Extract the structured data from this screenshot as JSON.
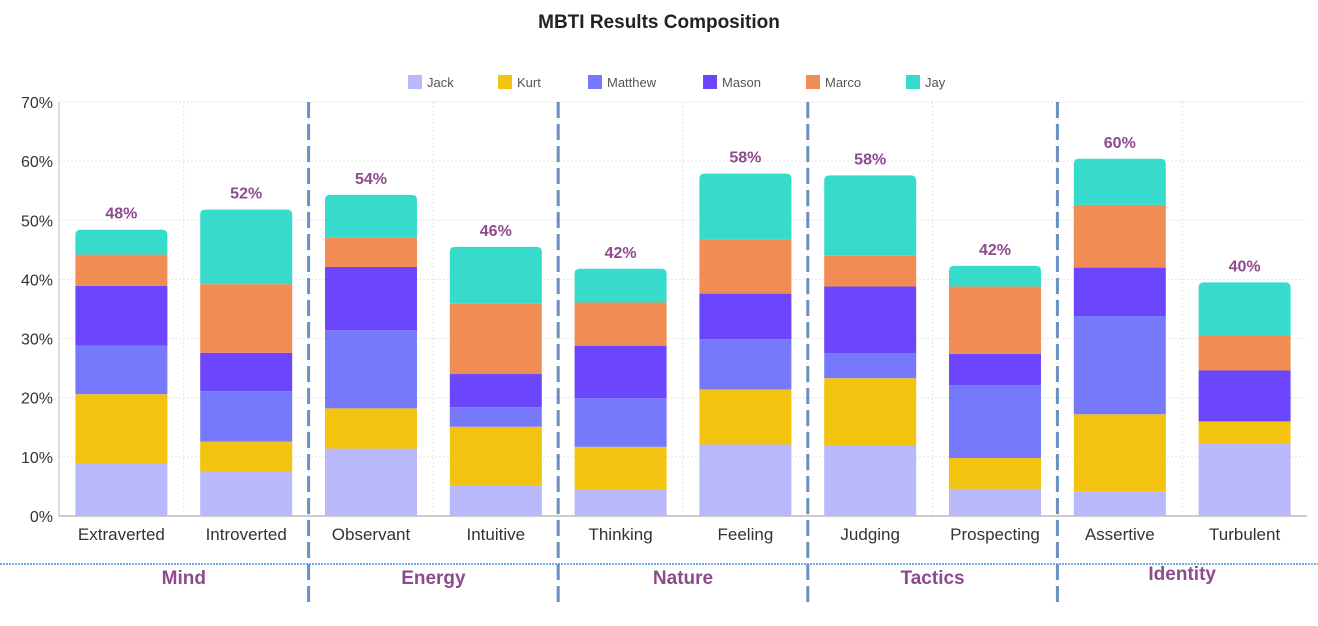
{
  "colors": {
    "group_label": "#8e4a8e",
    "separator": "#6a8fc0",
    "bottom_line": "#4a90e2",
    "grid": "#e3e3e3"
  },
  "chart_data": {
    "type": "bar",
    "stacked": true,
    "title": "MBTI Results Composition",
    "xlabel": "",
    "ylabel": "",
    "ylim": [
      0,
      70
    ],
    "yticks": [
      0,
      10,
      20,
      30,
      40,
      50,
      60,
      70
    ],
    "ytick_labels": [
      "0%",
      "10%",
      "20%",
      "30%",
      "40%",
      "50%",
      "60%",
      "70%"
    ],
    "grid": true,
    "legend_position": "top-center",
    "categories": [
      "Extraverted",
      "Introverted",
      "Observant",
      "Intuitive",
      "Thinking",
      "Feeling",
      "Judging",
      "Prospecting",
      "Assertive",
      "Turbulent"
    ],
    "totals": [
      "48%",
      "52%",
      "54%",
      "46%",
      "42%",
      "58%",
      "58%",
      "42%",
      "60%",
      "40%"
    ],
    "groups": [
      {
        "name": "Mind",
        "categories": [
          "Extraverted",
          "Introverted"
        ]
      },
      {
        "name": "Energy",
        "categories": [
          "Observant",
          "Intuitive"
        ]
      },
      {
        "name": "Nature",
        "categories": [
          "Thinking",
          "Feeling"
        ]
      },
      {
        "name": "Tactics",
        "categories": [
          "Judging",
          "Prospecting"
        ]
      },
      {
        "name": "Identity",
        "categories": [
          "Assertive",
          "Turbulent"
        ]
      }
    ],
    "series": [
      {
        "name": "Jack",
        "color": "#b8b8fa",
        "values": [
          8.8,
          7.6,
          11.4,
          5.1,
          4.4,
          12.1,
          11.9,
          4.6,
          4.2,
          12.2
        ]
      },
      {
        "name": "Kurt",
        "color": "#f2c30f",
        "values": [
          11.8,
          5.0,
          6.8,
          10.0,
          7.3,
          9.3,
          11.4,
          5.2,
          13.0,
          3.8
        ]
      },
      {
        "name": "Matthew",
        "color": "#7779fd",
        "values": [
          8.2,
          8.5,
          13.2,
          3.3,
          8.2,
          8.5,
          4.2,
          12.3,
          16.6,
          0.0
        ]
      },
      {
        "name": "Mason",
        "color": "#6b46fc",
        "values": [
          10.1,
          6.5,
          10.7,
          5.6,
          8.9,
          7.7,
          11.3,
          5.3,
          8.2,
          8.6
        ]
      },
      {
        "name": "Marco",
        "color": "#f28c55",
        "values": [
          5.3,
          11.6,
          5.0,
          11.9,
          7.3,
          9.2,
          5.2,
          11.4,
          10.6,
          6.0
        ]
      },
      {
        "name": "Jay",
        "color": "#36dbcb",
        "values": [
          4.2,
          12.6,
          7.2,
          9.6,
          5.7,
          11.1,
          13.6,
          3.5,
          7.8,
          8.9
        ]
      }
    ]
  }
}
